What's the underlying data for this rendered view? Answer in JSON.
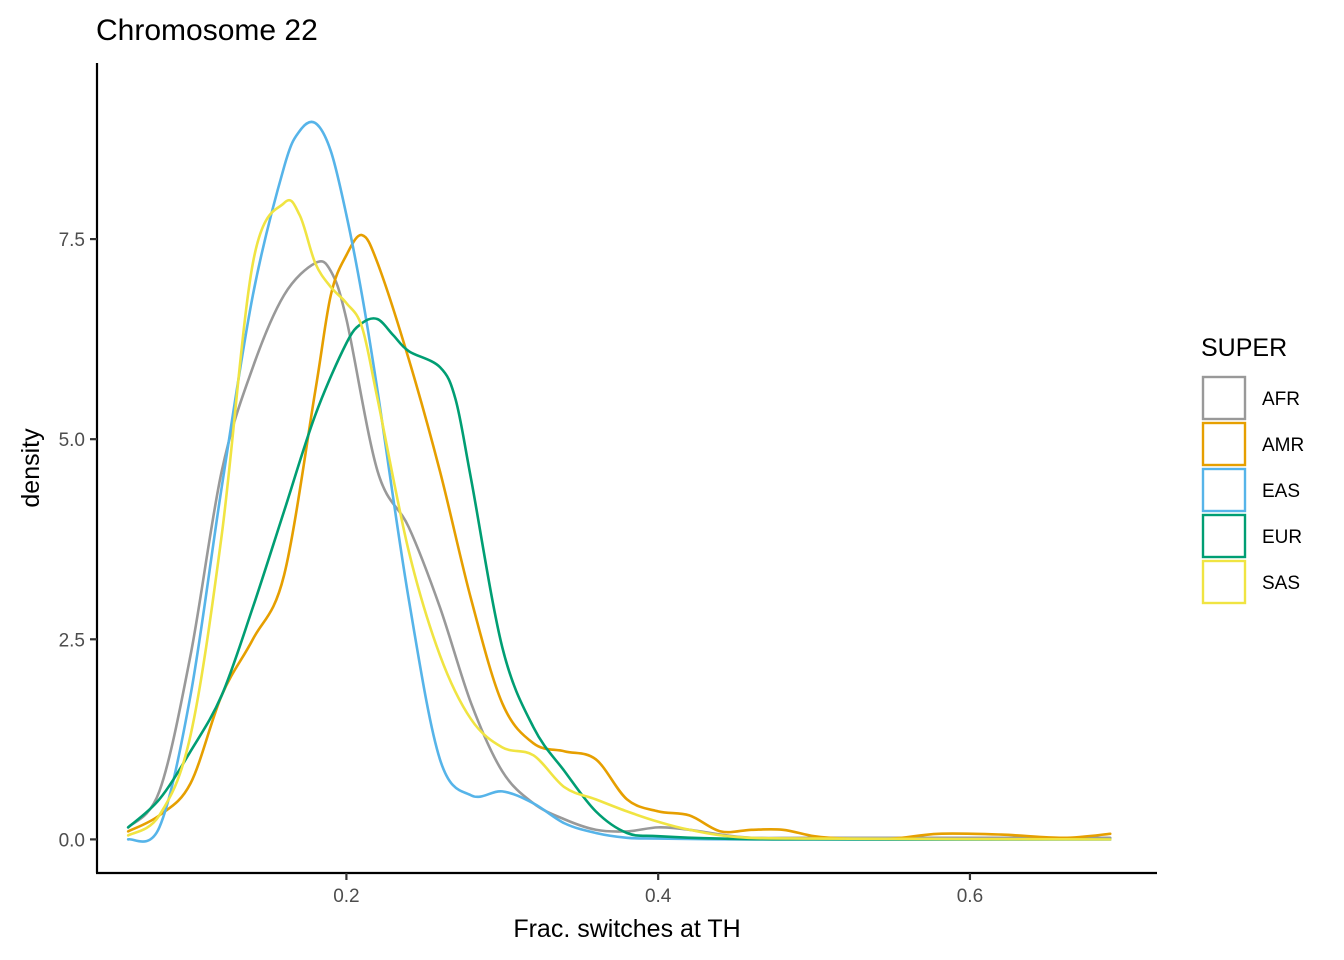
{
  "chart_data": {
    "type": "line",
    "title": "Chromosome 22",
    "xlabel": "Frac. switches at TH",
    "ylabel": "density",
    "xlim": [
      0.04,
      0.72
    ],
    "ylim": [
      -0.42,
      9.7
    ],
    "x_ticks": [
      {
        "value": 0.2,
        "label": "0.2"
      },
      {
        "value": 0.4,
        "label": "0.4"
      },
      {
        "value": 0.6,
        "label": "0.6"
      }
    ],
    "y_ticks": [
      {
        "value": 0.0,
        "label": "0.0"
      },
      {
        "value": 2.5,
        "label": "2.5"
      },
      {
        "value": 5.0,
        "label": "5.0"
      },
      {
        "value": 7.5,
        "label": "7.5"
      }
    ],
    "grid": false,
    "legend": {
      "title": "SUPER",
      "position": "right"
    },
    "series": [
      {
        "name": "AFR",
        "color": "#999999",
        "x": [
          0.06,
          0.08,
          0.1,
          0.12,
          0.14,
          0.16,
          0.18,
          0.19,
          0.2,
          0.22,
          0.24,
          0.26,
          0.28,
          0.3,
          0.32,
          0.34,
          0.36,
          0.38,
          0.4,
          0.42,
          0.44,
          0.46,
          0.5,
          0.6,
          0.69
        ],
        "y": [
          0.15,
          0.6,
          2.3,
          4.6,
          5.9,
          6.8,
          7.2,
          7.1,
          6.5,
          4.6,
          3.9,
          2.9,
          1.7,
          0.85,
          0.45,
          0.25,
          0.12,
          0.1,
          0.15,
          0.12,
          0.06,
          0.02,
          0.02,
          0.02,
          0.02
        ]
      },
      {
        "name": "AMR",
        "color": "#E69F00",
        "x": [
          0.06,
          0.08,
          0.1,
          0.12,
          0.14,
          0.16,
          0.18,
          0.19,
          0.2,
          0.21,
          0.22,
          0.24,
          0.26,
          0.28,
          0.3,
          0.32,
          0.34,
          0.36,
          0.38,
          0.4,
          0.42,
          0.44,
          0.46,
          0.48,
          0.5,
          0.52,
          0.55,
          0.58,
          0.62,
          0.66,
          0.69
        ],
        "y": [
          0.1,
          0.3,
          0.7,
          1.8,
          2.5,
          3.3,
          5.6,
          6.8,
          7.3,
          7.55,
          7.2,
          6.0,
          4.6,
          3.0,
          1.7,
          1.2,
          1.1,
          1.0,
          0.5,
          0.35,
          0.3,
          0.1,
          0.12,
          0.12,
          0.04,
          0.01,
          0.01,
          0.07,
          0.06,
          0.02,
          0.07
        ]
      },
      {
        "name": "EAS",
        "color": "#56B4E9",
        "x": [
          0.06,
          0.08,
          0.1,
          0.12,
          0.14,
          0.16,
          0.17,
          0.18,
          0.19,
          0.2,
          0.21,
          0.22,
          0.24,
          0.26,
          0.28,
          0.3,
          0.32,
          0.34,
          0.36,
          0.38,
          0.4,
          0.45,
          0.5,
          0.69
        ],
        "y": [
          0.0,
          0.15,
          1.8,
          4.4,
          6.8,
          8.4,
          8.85,
          8.95,
          8.6,
          7.8,
          6.8,
          5.6,
          3.0,
          1.0,
          0.55,
          0.6,
          0.45,
          0.2,
          0.08,
          0.02,
          0.01,
          0.0,
          0.0,
          0.0
        ]
      },
      {
        "name": "EUR",
        "color": "#009E73",
        "x": [
          0.06,
          0.08,
          0.1,
          0.12,
          0.14,
          0.16,
          0.18,
          0.2,
          0.21,
          0.22,
          0.23,
          0.24,
          0.26,
          0.27,
          0.28,
          0.3,
          0.32,
          0.34,
          0.36,
          0.38,
          0.4,
          0.44,
          0.5,
          0.69
        ],
        "y": [
          0.15,
          0.5,
          1.1,
          1.8,
          2.9,
          4.1,
          5.3,
          6.2,
          6.45,
          6.5,
          6.3,
          6.1,
          5.9,
          5.5,
          4.5,
          2.4,
          1.4,
          0.85,
          0.35,
          0.08,
          0.04,
          0.01,
          0.0,
          0.0
        ]
      },
      {
        "name": "SAS",
        "color": "#F0E442",
        "x": [
          0.06,
          0.08,
          0.1,
          0.12,
          0.14,
          0.16,
          0.17,
          0.18,
          0.19,
          0.2,
          0.21,
          0.22,
          0.24,
          0.26,
          0.28,
          0.3,
          0.32,
          0.34,
          0.36,
          0.38,
          0.4,
          0.42,
          0.45,
          0.5,
          0.69
        ],
        "y": [
          0.05,
          0.3,
          1.3,
          3.8,
          7.2,
          7.95,
          7.8,
          7.2,
          6.9,
          6.7,
          6.4,
          5.5,
          3.6,
          2.3,
          1.5,
          1.15,
          1.05,
          0.65,
          0.5,
          0.35,
          0.22,
          0.12,
          0.03,
          0.01,
          0.0
        ]
      }
    ]
  }
}
